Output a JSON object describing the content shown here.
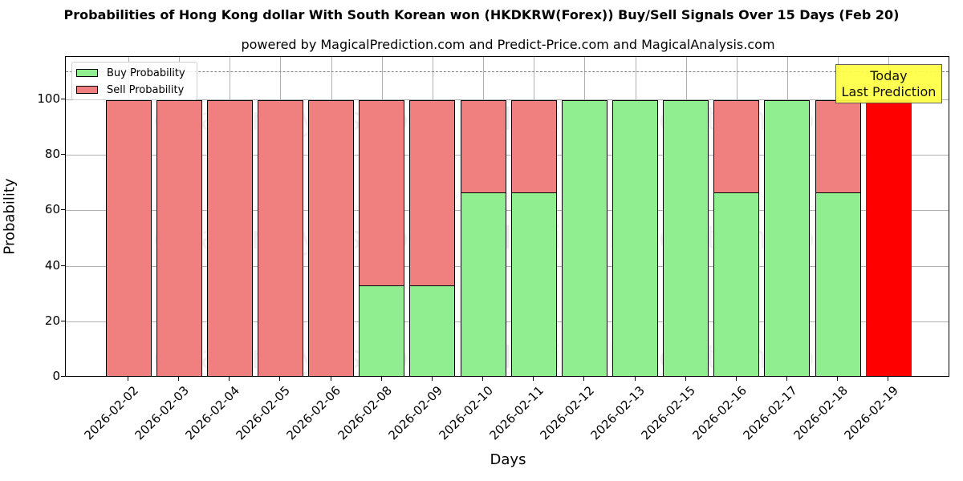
{
  "header": {
    "title": "Probabilities of Hong Kong dollar With South Korean won (HKDKRW(Forex)) Buy/Sell Signals Over 15 Days (Feb 20)",
    "subtitle": "powered by MagicalPrediction.com and Predict-Price.com and MagicalAnalysis.com"
  },
  "legend": {
    "buy_label": "Buy Probability",
    "sell_label": "Sell Probability"
  },
  "annotation": {
    "line1": "Today",
    "line2": "Last Prediction"
  },
  "axes": {
    "xlabel": "Days",
    "ylabel": "Probability",
    "yticks": [
      "0",
      "20",
      "40",
      "60",
      "80",
      "100"
    ]
  },
  "watermarks": [
    "MagicalAnalysis.com",
    "MagicalPrediction.com"
  ],
  "colors": {
    "buy": "#90ee90",
    "sell": "#f08080",
    "today": "#ff0000",
    "annotation_bg": "#ffff44"
  },
  "chart_data": {
    "type": "bar",
    "stacked": true,
    "title": "Probabilities of Hong Kong dollar With South Korean won (HKDKRW(Forex)) Buy/Sell Signals Over 15 Days (Feb 20)",
    "subtitle": "powered by MagicalPrediction.com and Predict-Price.com and MagicalAnalysis.com",
    "xlabel": "Days",
    "ylabel": "Probability",
    "ylim": [
      0,
      115
    ],
    "yticks": [
      0,
      20,
      40,
      60,
      80,
      100
    ],
    "grid": true,
    "legend_position": "upper left",
    "reference_line": {
      "y": 110,
      "style": "dashed",
      "color": "#808080"
    },
    "categories": [
      "2026-02-02",
      "2026-02-03",
      "2026-02-04",
      "2026-02-05",
      "2026-02-06",
      "2026-02-08",
      "2026-02-09",
      "2026-02-10",
      "2026-02-11",
      "2026-02-12",
      "2026-02-13",
      "2026-02-15",
      "2026-02-16",
      "2026-02-17",
      "2026-02-18",
      "2026-02-19"
    ],
    "series": [
      {
        "name": "Buy Probability",
        "color": "#90ee90",
        "values": [
          0,
          0,
          0,
          0,
          0,
          33.33,
          33.33,
          66.67,
          66.67,
          100,
          100,
          100,
          66.67,
          100,
          66.67,
          0
        ]
      },
      {
        "name": "Sell Probability",
        "color": "#f08080",
        "values": [
          100,
          100,
          100,
          100,
          100,
          66.67,
          66.67,
          33.33,
          33.33,
          0,
          0,
          0,
          33.33,
          0,
          33.33,
          100
        ]
      }
    ],
    "highlight": {
      "category": "2026-02-19",
      "color": "#ff0000",
      "label": "Today\nLast Prediction"
    }
  }
}
